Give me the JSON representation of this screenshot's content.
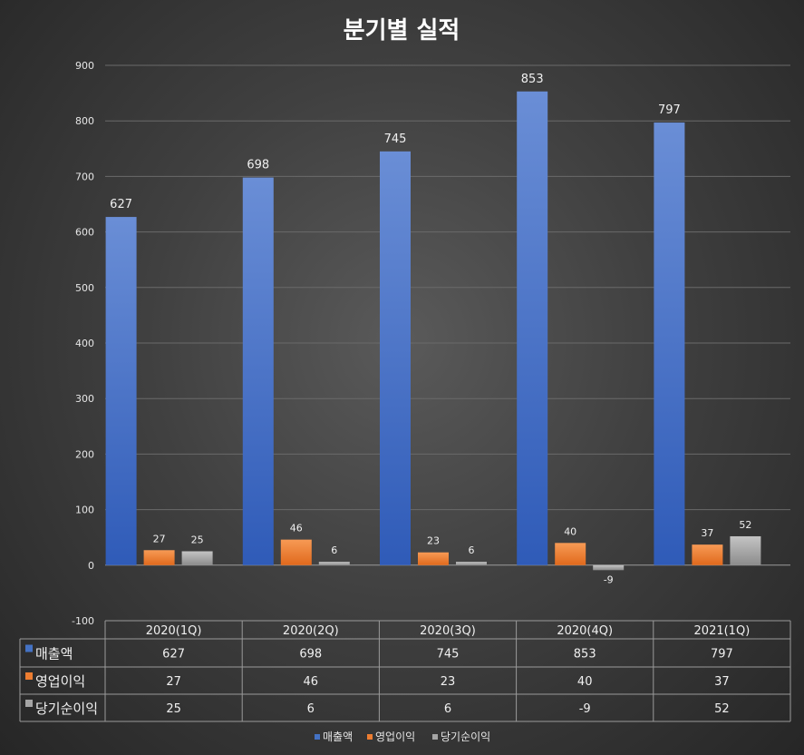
{
  "chart_data": {
    "type": "bar",
    "title": "분기별 실적",
    "categories": [
      "2020(1Q)",
      "2020(2Q)",
      "2020(3Q)",
      "2020(4Q)",
      "2021(1Q)"
    ],
    "series": [
      {
        "name": "매출액",
        "values": [
          627,
          698,
          745,
          853,
          797
        ],
        "color": "#4472c4"
      },
      {
        "name": "영업이익",
        "values": [
          27,
          46,
          23,
          40,
          37
        ],
        "color": "#ed7d31"
      },
      {
        "name": "당기순이익",
        "values": [
          25,
          6,
          6,
          -9,
          52
        ],
        "color": "#a5a5a5"
      }
    ],
    "yticks": [
      900,
      800,
      700,
      600,
      500,
      400,
      300,
      200,
      100,
      0,
      -100
    ],
    "ylim": [
      -100,
      900
    ],
    "grid": true,
    "legend": "bottom",
    "data_table": true
  }
}
